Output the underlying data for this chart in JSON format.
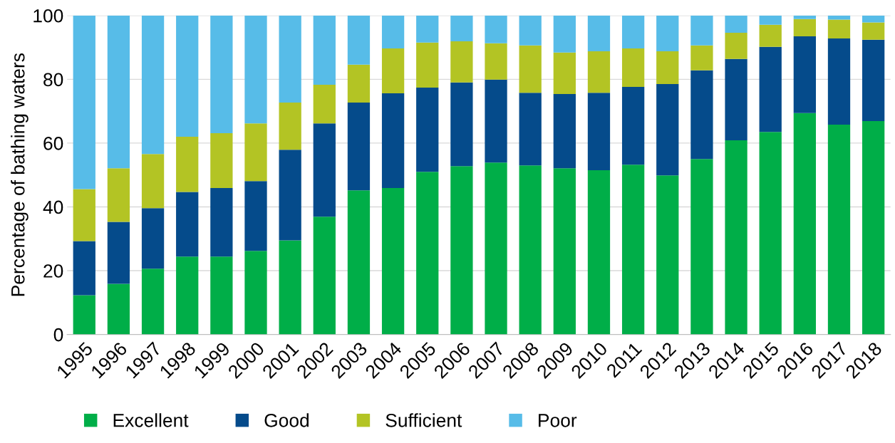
{
  "chart_data": {
    "type": "bar",
    "stacked": true,
    "ylabel": "Percentage of bathing waters",
    "categories": [
      "1995",
      "1996",
      "1997",
      "1998",
      "1999",
      "2000",
      "2001",
      "2002",
      "2003",
      "2004",
      "2005",
      "2006",
      "2007",
      "2008",
      "2009",
      "2010",
      "2011",
      "2012",
      "2013",
      "2014",
      "2015",
      "2016",
      "2017",
      "2018"
    ],
    "series": [
      {
        "name": "Excellent",
        "color": "#00ae48",
        "values": [
          12.3,
          15.9,
          20.6,
          24.4,
          24.4,
          26.2,
          29.5,
          36.9,
          45.2,
          45.9,
          51.0,
          52.8,
          53.9,
          53.0,
          52.1,
          51.5,
          53.2,
          49.9,
          55.0,
          60.9,
          63.5,
          69.4,
          65.8,
          66.9
        ]
      },
      {
        "name": "Good",
        "color": "#054b8b",
        "values": [
          17.0,
          19.4,
          19.0,
          20.3,
          21.5,
          21.9,
          28.4,
          29.3,
          27.5,
          29.7,
          26.4,
          26.2,
          26.0,
          22.8,
          23.3,
          24.3,
          24.4,
          28.6,
          27.8,
          25.5,
          26.7,
          24.1,
          27.0,
          25.5
        ]
      },
      {
        "name": "Sufficient",
        "color": "#b3c424",
        "values": [
          16.3,
          16.8,
          17.0,
          17.3,
          17.2,
          18.1,
          14.8,
          12.1,
          11.9,
          14.1,
          14.1,
          12.9,
          11.4,
          14.8,
          13.0,
          13.0,
          12.1,
          10.3,
          7.8,
          8.2,
          6.9,
          5.4,
          5.9,
          5.4
        ]
      },
      {
        "name": "Poor",
        "color": "#57bce8",
        "values": [
          54.4,
          47.9,
          43.4,
          38.0,
          36.9,
          33.8,
          27.3,
          21.7,
          15.4,
          10.3,
          8.5,
          8.1,
          8.7,
          9.4,
          11.6,
          11.2,
          10.3,
          11.2,
          9.4,
          5.4,
          2.9,
          1.1,
          1.3,
          2.2
        ]
      }
    ],
    "ylim": [
      0,
      100
    ],
    "yticks": [
      0,
      20,
      40,
      60,
      80,
      100
    ],
    "grid": "y",
    "legend": "bottom"
  }
}
